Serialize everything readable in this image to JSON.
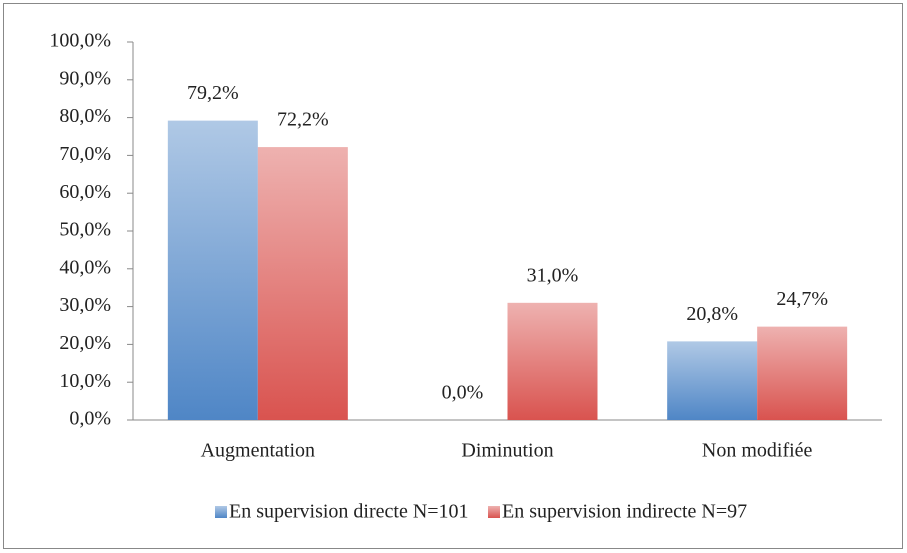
{
  "chart_data": {
    "type": "bar",
    "categories": [
      "Augmentation",
      "Diminution",
      "Non modifiée"
    ],
    "series": [
      {
        "name": "En supervision directe N=101",
        "color": "#4f86c6",
        "values": [
          79.2,
          0,
          20.8
        ],
        "value_labels": [
          "79,2%",
          "0,0%",
          "20,8%"
        ]
      },
      {
        "name": "En supervision indirecte N=97",
        "color": "#d9534f",
        "values": [
          72.2,
          31.0,
          24.7
        ],
        "value_labels": [
          "72,2%",
          "31,0%",
          "24,7%"
        ]
      }
    ],
    "ylim": [
      0,
      100
    ],
    "yticks": [
      {
        "value": 0,
        "label": "0,0%"
      },
      {
        "value": 10,
        "label": "10,0%"
      },
      {
        "value": 20,
        "label": "20,0%"
      },
      {
        "value": 30,
        "label": "30,0%"
      },
      {
        "value": 40,
        "label": "40,0%"
      },
      {
        "value": 50,
        "label": "50,0%"
      },
      {
        "value": 60,
        "label": "60,0%"
      },
      {
        "value": 70,
        "label": "70,0%"
      },
      {
        "value": 80,
        "label": "80,0%"
      },
      {
        "value": 90,
        "label": "90,0%"
      },
      {
        "value": 100,
        "label": "100,0%"
      }
    ],
    "grid": false,
    "legend": "bottom"
  }
}
